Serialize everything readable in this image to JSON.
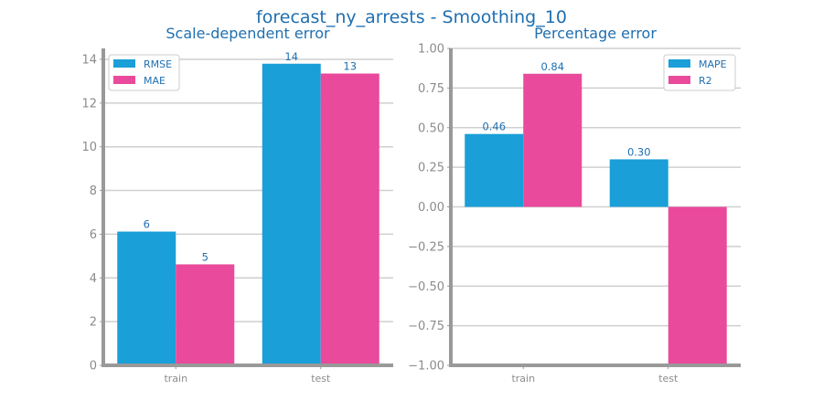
{
  "figure": {
    "title": "forecast_ny_arrests - Smoothing_10"
  },
  "colors": {
    "series_a": "#1a9fd8",
    "series_b": "#e94a9b",
    "text": "#1f6fb0",
    "tick": "#8c8c8c"
  },
  "chart_data": [
    {
      "type": "bar",
      "title": "Scale-dependent error",
      "categories": [
        "train",
        "test"
      ],
      "series": [
        {
          "name": "RMSE",
          "values": [
            6.12,
            13.8
          ],
          "labels": [
            "6",
            "14"
          ]
        },
        {
          "name": "MAE",
          "values": [
            4.62,
            13.35
          ],
          "labels": [
            "5",
            "13"
          ]
        }
      ],
      "ylim": [
        0,
        14.5
      ],
      "yticks": [
        0,
        2,
        4,
        6,
        8,
        10,
        12,
        14
      ],
      "ytick_labels": [
        "0",
        "2",
        "4",
        "6",
        "8",
        "10",
        "12",
        "14"
      ],
      "legend": "top-left",
      "grid": true
    },
    {
      "type": "bar",
      "title": "Percentage error",
      "categories": [
        "train",
        "test"
      ],
      "series": [
        {
          "name": "MAPE",
          "values": [
            0.46,
            0.3
          ],
          "labels": [
            "0.46",
            "0.30"
          ]
        },
        {
          "name": "R2",
          "values": [
            0.84,
            -1.0
          ],
          "labels": [
            "0.84",
            ""
          ]
        }
      ],
      "ylim": [
        -1.0,
        1.0
      ],
      "yticks": [
        -1.0,
        -0.75,
        -0.5,
        -0.25,
        0.0,
        0.25,
        0.5,
        0.75,
        1.0
      ],
      "ytick_labels": [
        "−1.00",
        "−0.75",
        "−0.50",
        "−0.25",
        "0.00",
        "0.25",
        "0.50",
        "0.75",
        "1.00"
      ],
      "legend": "top-right",
      "grid": true
    }
  ]
}
